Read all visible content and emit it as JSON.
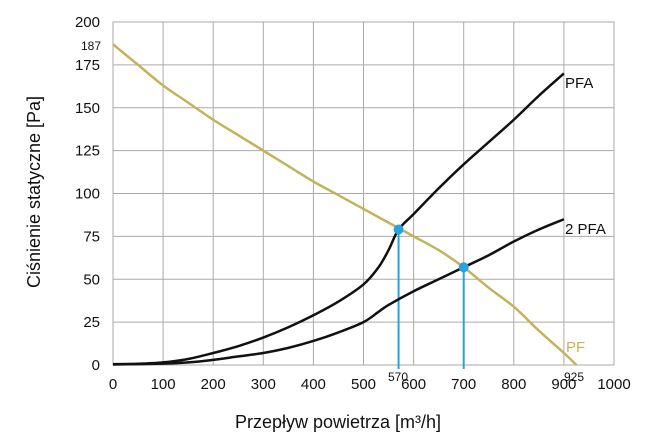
{
  "chart_data": {
    "type": "line",
    "xlabel": "Przepływ powietrza [m³/h]",
    "ylabel": "Ciśnienie statyczne [Pa]",
    "xlim": [
      0,
      1000
    ],
    "ylim": [
      0,
      200
    ],
    "xticks": [
      0,
      100,
      200,
      300,
      400,
      500,
      600,
      700,
      800,
      900,
      1000
    ],
    "yticks": [
      0,
      25,
      50,
      75,
      100,
      125,
      150,
      175,
      200
    ],
    "grid": true,
    "series": [
      {
        "name": "PFA",
        "color": "#111111",
        "points": [
          [
            0,
            0.5
          ],
          [
            50,
            0.7
          ],
          [
            100,
            1.5
          ],
          [
            150,
            3.5
          ],
          [
            200,
            7
          ],
          [
            250,
            11
          ],
          [
            300,
            16
          ],
          [
            350,
            22
          ],
          [
            400,
            29
          ],
          [
            450,
            37
          ],
          [
            500,
            47
          ],
          [
            530,
            57
          ],
          [
            550,
            67
          ],
          [
            570,
            79
          ],
          [
            600,
            88
          ],
          [
            650,
            103
          ],
          [
            700,
            117
          ],
          [
            750,
            130
          ],
          [
            800,
            143
          ],
          [
            850,
            157
          ],
          [
            900,
            170
          ]
        ]
      },
      {
        "name": "2 PFA",
        "color": "#111111",
        "points": [
          [
            0,
            0.3
          ],
          [
            100,
            0.8
          ],
          [
            150,
            1.5
          ],
          [
            200,
            3
          ],
          [
            250,
            5
          ],
          [
            300,
            7
          ],
          [
            350,
            10
          ],
          [
            400,
            14
          ],
          [
            450,
            19
          ],
          [
            500,
            25
          ],
          [
            530,
            31
          ],
          [
            550,
            35
          ],
          [
            600,
            43
          ],
          [
            650,
            50
          ],
          [
            700,
            57
          ],
          [
            750,
            64
          ],
          [
            800,
            72
          ],
          [
            850,
            79
          ],
          [
            900,
            85
          ]
        ]
      },
      {
        "name": "PF",
        "color": "#c3b35a",
        "points": [
          [
            0,
            187
          ],
          [
            50,
            175
          ],
          [
            100,
            163
          ],
          [
            150,
            153
          ],
          [
            200,
            143
          ],
          [
            250,
            134
          ],
          [
            300,
            125
          ],
          [
            350,
            116
          ],
          [
            400,
            107
          ],
          [
            450,
            99
          ],
          [
            500,
            91
          ],
          [
            550,
            83
          ],
          [
            600,
            75
          ],
          [
            650,
            67
          ],
          [
            700,
            57
          ],
          [
            750,
            45
          ],
          [
            800,
            34
          ],
          [
            850,
            20
          ],
          [
            900,
            7
          ],
          [
            925,
            0
          ]
        ]
      }
    ],
    "operating_points": [
      {
        "x": 570,
        "y": 79,
        "color": "#29a3e0"
      },
      {
        "x": 700,
        "y": 57,
        "color": "#29a3e0"
      }
    ],
    "annotations": {
      "y_top": "187",
      "x_a": "570",
      "x_b": "925"
    }
  }
}
